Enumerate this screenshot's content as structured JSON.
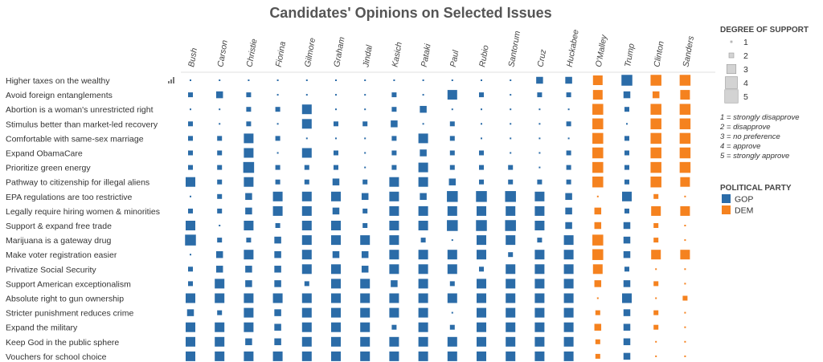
{
  "chart_data": {
    "type": "heatmap",
    "title": "Candidates' Opinions on Selected Issues",
    "candidates": [
      "Bush",
      "Carson",
      "Christie",
      "Fiorina",
      "Gilmore",
      "Graham",
      "Jindal",
      "Kasich",
      "Pataki",
      "Paul",
      "Rubio",
      "Santorum",
      "Cruz",
      "Huckabee",
      "O'Malley",
      "Trump",
      "Clinton",
      "Sanders"
    ],
    "parties": [
      "GOP",
      "GOP",
      "GOP",
      "GOP",
      "GOP",
      "GOP",
      "GOP",
      "GOP",
      "GOP",
      "GOP",
      "GOP",
      "GOP",
      "GOP",
      "GOP",
      "DEM",
      "GOP",
      "DEM",
      "DEM"
    ],
    "issues": [
      "Higher taxes on the wealthy",
      "Avoid foreign entanglements",
      "Abortion is a woman's unrestricted right",
      "Stimulus better than market-led recovery",
      "Comfortable with same-sex marriage",
      "Expand ObamaCare",
      "Prioritize green energy",
      "Pathway to citizenship for illegal aliens",
      "EPA regulations are too restrictive",
      "Legally require hiring women & minorities",
      "Support & expand free trade",
      "Marijuana is a gateway drug",
      "Make voter registration easier",
      "Privatize Social Security",
      "Support American exceptionalism",
      "Absolute right to gun ownership",
      "Stricter punishment reduces crime",
      "Expand the military",
      "Keep God in the public sphere",
      "Vouchers for school choice"
    ],
    "values": [
      [
        1,
        1,
        1,
        1,
        1,
        1,
        1,
        1,
        1,
        1,
        1,
        1,
        3,
        3,
        4,
        5,
        5,
        5
      ],
      [
        2,
        3,
        2,
        1,
        1,
        1,
        1,
        2,
        1,
        4,
        2,
        1,
        2,
        2,
        4,
        3,
        3,
        4
      ],
      [
        1,
        1,
        2,
        2,
        4,
        1,
        1,
        2,
        3,
        1,
        1,
        1,
        1,
        1,
        5,
        2,
        5,
        5
      ],
      [
        2,
        1,
        2,
        1,
        4,
        2,
        2,
        3,
        1,
        2,
        1,
        1,
        1,
        2,
        5,
        1,
        5,
        5
      ],
      [
        2,
        2,
        4,
        2,
        1,
        1,
        1,
        2,
        4,
        2,
        1,
        1,
        1,
        1,
        5,
        2,
        5,
        5
      ],
      [
        2,
        2,
        4,
        1,
        4,
        2,
        1,
        2,
        3,
        2,
        2,
        1,
        1,
        2,
        5,
        2,
        5,
        5
      ],
      [
        2,
        2,
        5,
        2,
        2,
        2,
        1,
        2,
        4,
        2,
        2,
        2,
        1,
        2,
        5,
        2,
        5,
        5
      ],
      [
        4,
        2,
        4,
        2,
        2,
        3,
        2,
        4,
        4,
        3,
        2,
        2,
        2,
        2,
        5,
        2,
        5,
        4
      ],
      [
        1,
        2,
        3,
        4,
        4,
        4,
        3,
        4,
        3,
        5,
        5,
        5,
        4,
        3,
        1,
        4,
        2,
        1
      ],
      [
        2,
        2,
        3,
        4,
        4,
        3,
        2,
        4,
        4,
        4,
        4,
        4,
        4,
        3,
        3,
        2,
        4,
        4
      ],
      [
        4,
        1,
        4,
        2,
        4,
        4,
        2,
        4,
        4,
        5,
        5,
        5,
        4,
        3,
        3,
        3,
        2,
        1
      ],
      [
        5,
        2,
        2,
        3,
        4,
        4,
        4,
        4,
        2,
        1,
        4,
        4,
        2,
        4,
        5,
        3,
        2,
        1
      ],
      [
        1,
        3,
        4,
        3,
        4,
        3,
        3,
        4,
        4,
        4,
        4,
        2,
        4,
        4,
        5,
        3,
        4,
        4
      ],
      [
        2,
        3,
        3,
        3,
        4,
        4,
        3,
        4,
        4,
        4,
        2,
        4,
        4,
        4,
        4,
        2,
        1,
        1
      ],
      [
        2,
        4,
        3,
        3,
        2,
        4,
        4,
        3,
        4,
        2,
        4,
        4,
        4,
        4,
        3,
        3,
        2,
        1
      ],
      [
        4,
        4,
        4,
        4,
        4,
        4,
        4,
        4,
        4,
        4,
        4,
        4,
        4,
        4,
        1,
        4,
        1,
        2
      ],
      [
        3,
        2,
        4,
        3,
        4,
        4,
        4,
        4,
        4,
        1,
        4,
        4,
        4,
        4,
        2,
        3,
        2,
        1
      ],
      [
        4,
        4,
        4,
        3,
        4,
        4,
        4,
        2,
        4,
        2,
        4,
        4,
        4,
        4,
        3,
        3,
        2,
        1
      ],
      [
        4,
        4,
        3,
        3,
        4,
        4,
        4,
        4,
        4,
        4,
        4,
        4,
        4,
        4,
        2,
        3,
        1,
        1
      ],
      [
        4,
        4,
        4,
        4,
        4,
        4,
        4,
        4,
        4,
        4,
        4,
        4,
        4,
        4,
        2,
        3,
        1,
        1
      ]
    ],
    "legend_size": {
      "title": "DEGREE OF SUPPORT",
      "levels": [
        "1",
        "2",
        "3",
        "4",
        "5"
      ],
      "notes": [
        "1 = strongly disapprove",
        "2 = disapprove",
        "3 = no preference",
        "4 = approve",
        "5 = strongly approve"
      ]
    },
    "legend_color": {
      "title": "POLITICAL PARTY",
      "items": [
        {
          "label": "GOP",
          "color": "#2b6ca8"
        },
        {
          "label": "DEM",
          "color": "#f5821f"
        }
      ]
    },
    "colors": {
      "GOP": "#2b6ca8",
      "DEM": "#f5821f",
      "legend_box": "#d3d3d3"
    }
  }
}
